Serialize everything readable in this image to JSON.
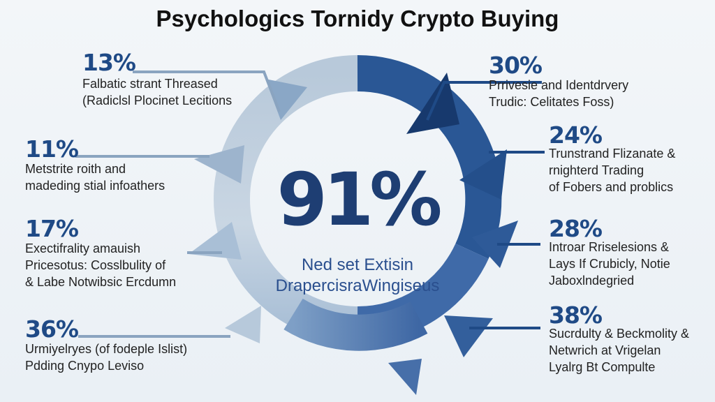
{
  "title": "Psychologics Tornidy Crypto Buying",
  "center": {
    "value": "91%",
    "caption_line1": "Ned set Extisin",
    "caption_line2": "DrapercisraWingiseus"
  },
  "left_items": [
    {
      "percent": "13%",
      "line1": "Falbatic strant Threased",
      "line2": "(Radiclsl Plocinet Lecitions",
      "line3": ""
    },
    {
      "percent": "11%",
      "line1": "Metstrite roith and",
      "line2": "madeding stial infoathers",
      "line3": ""
    },
    {
      "percent": "17%",
      "line1": "Exectifrality amauish",
      "line2": "Pricesotus: Cosslbulity of",
      "line3": "& Labe Notwibsic Ercdumn"
    },
    {
      "percent": "36%",
      "line1": "Urmiyelryes (of fodeple Islist)",
      "line2": "Pdding Cnypo Leviso",
      "line3": ""
    }
  ],
  "right_items": [
    {
      "percent": "30%",
      "line1": "Prrivesie and Identdrvery",
      "line2": "Trudic: Celitates Foss)",
      "line3": ""
    },
    {
      "percent": "24%",
      "line1": "Trunstrand Flizanate &",
      "line2": "rnighterd Trading",
      "line3": "of Fobers and problics"
    },
    {
      "percent": "28%",
      "line1": "Introar Rriselesions &",
      "line2": "Lays If Crubicly, Notie",
      "line3": "Jaboxlndegried"
    },
    {
      "percent": "38%",
      "line1": "Sucrdulty & Beckmolity &",
      "line2": "Netwrich at Vrigelan",
      "line3": "Lyalrg Bt Compulte"
    }
  ],
  "colors": {
    "dark_blue": "#1f4a86",
    "mid_blue": "#3f6aa8",
    "light_blue": "#a6bcd2",
    "pale_blue": "#c5d4e2"
  }
}
